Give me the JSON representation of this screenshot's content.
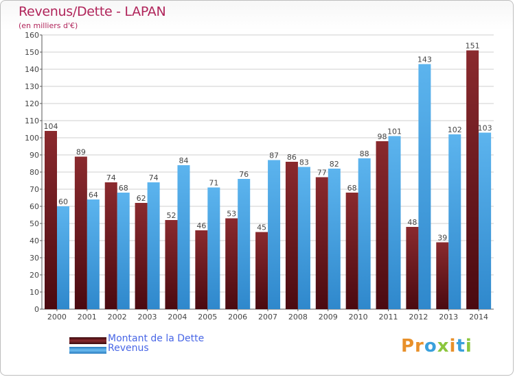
{
  "chart_data": {
    "type": "bar",
    "title": "Revenus/Dette - LAPAN",
    "subtitle": "(en milliers d'€)",
    "categories": [
      "2000",
      "2001",
      "2002",
      "2003",
      "2004",
      "2005",
      "2006",
      "2007",
      "2008",
      "2009",
      "2010",
      "2011",
      "2012",
      "2013",
      "2014"
    ],
    "series": [
      {
        "name": "Montant de la Dette",
        "color": "#7a1d22",
        "values": [
          104,
          89,
          74,
          62,
          52,
          46,
          53,
          45,
          86,
          77,
          68,
          98,
          48,
          39,
          151
        ]
      },
      {
        "name": "Revenus",
        "color": "#4aa6e8",
        "values": [
          60,
          64,
          68,
          74,
          84,
          71,
          76,
          87,
          83,
          82,
          88,
          101,
          143,
          102,
          103
        ]
      }
    ],
    "ylim": [
      0,
      160
    ],
    "yticks": [
      0,
      10,
      20,
      30,
      40,
      50,
      60,
      70,
      80,
      90,
      100,
      110,
      120,
      130,
      140,
      150,
      160
    ],
    "grid": true,
    "legend": "bottom-left"
  },
  "logo": {
    "text": "Proxiti"
  }
}
